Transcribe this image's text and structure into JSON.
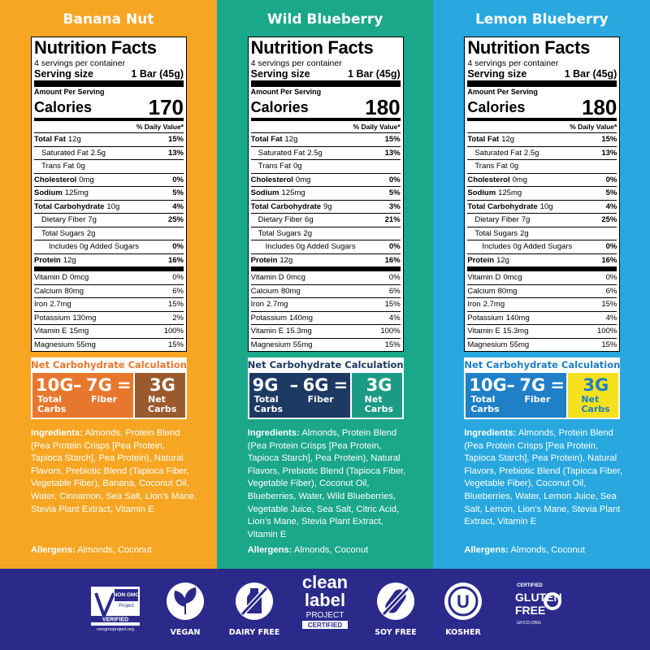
{
  "products": [
    {
      "name": "Banana Nut",
      "facts": {
        "title": "Nutrition Facts",
        "servings": "4 servings per container",
        "serving_label": "Serving size",
        "serving_value": "1 Bar (45g)",
        "amount_per": "Amount Per Serving",
        "calories_label": "Calories",
        "calories": 170,
        "dv_header": "% Daily Value*",
        "rows": [
          {
            "name": "Total Fat",
            "amount": "12g",
            "dv": "15%"
          },
          {
            "name": "Saturated Fat",
            "amount": "2.5g",
            "dv": "13%"
          },
          {
            "name": "Trans Fat",
            "amount": "0g"
          },
          {
            "name": "Cholesterol",
            "amount": "0mg",
            "dv": "0%"
          },
          {
            "name": "Sodium",
            "amount": "125mg",
            "dv": "5%"
          },
          {
            "name": "Total Carbohydrate",
            "amount": "10g",
            "dv": "4%"
          },
          {
            "name": "Dietary Fiber",
            "amount": "7g",
            "dv": "25%"
          },
          {
            "name": "Total Sugars",
            "amount": "2g"
          },
          {
            "name": "Includes 0g Added Sugars",
            "dv": "0%"
          },
          {
            "name": "Protein",
            "amount": "12g",
            "dv": "16%"
          },
          {
            "name": "Vitamin D",
            "amount": "0mcg",
            "dv": "0%"
          },
          {
            "name": "Calcium",
            "amount": "80mg",
            "dv": "6%"
          },
          {
            "name": "Iron",
            "amount": "2.7mg",
            "dv": "15%"
          },
          {
            "name": "Potassium",
            "amount": "130mg",
            "dv": "2%"
          },
          {
            "name": "Vitamin E",
            "amount": "15mg",
            "dv": "100%"
          },
          {
            "name": "Magnesium",
            "amount": "55mg",
            "dv": "15%"
          }
        ]
      },
      "net": {
        "title": "Net Carbohydrate Calculation",
        "total": "10G",
        "total_label": "Total Carbs",
        "minus": "–",
        "fiber": "7G",
        "fiber_label": "Fiber",
        "equals": "=",
        "result": "3G",
        "result_label": "Net Carbs"
      },
      "ingredients_label": "Ingredients:",
      "ingredients": "Almonds, Protein Blend (Pea Protein Crisps [Pea Protein, Tapioca Starch], Pea Protein), Natural Flavors, Prebiotic Blend (Tapioca Fiber, Vegetable Fiber), Banana, Coconut Oil, Water, Cinnamon, Sea Salt, Lion’s Mane, Stevia Plant Extract, Vitamin E",
      "allergens_label": "Allergens:",
      "allergens": "Almonds, Coconut"
    },
    {
      "name": "Wild Blueberry",
      "facts": {
        "title": "Nutrition Facts",
        "servings": "4 servings per container",
        "serving_label": "Serving size",
        "serving_value": "1 Bar (45g)",
        "amount_per": "Amount Per Serving",
        "calories_label": "Calories",
        "calories": 180,
        "dv_header": "% Daily Value*",
        "rows": [
          {
            "name": "Total Fat",
            "amount": "12g",
            "dv": "15%"
          },
          {
            "name": "Saturated Fat",
            "amount": "2.5g",
            "dv": "13%"
          },
          {
            "name": "Trans Fat",
            "amount": "0g"
          },
          {
            "name": "Cholesterol",
            "amount": "0mg",
            "dv": "0%"
          },
          {
            "name": "Sodium",
            "amount": "125mg",
            "dv": "5%"
          },
          {
            "name": "Total Carbohydrate",
            "amount": "9g",
            "dv": "3%"
          },
          {
            "name": "Dietary Fiber",
            "amount": "6g",
            "dv": "21%"
          },
          {
            "name": "Total Sugars",
            "amount": "2g"
          },
          {
            "name": "Includes 0g Added Sugars",
            "dv": "0%"
          },
          {
            "name": "Protein",
            "amount": "12g",
            "dv": "16%"
          },
          {
            "name": "Vitamin D",
            "amount": "0mcg",
            "dv": "0%"
          },
          {
            "name": "Calcium",
            "amount": "80mg",
            "dv": "6%"
          },
          {
            "name": "Iron",
            "amount": "2.7mg",
            "dv": "15%"
          },
          {
            "name": "Potassium",
            "amount": "140mg",
            "dv": "4%"
          },
          {
            "name": "Vitamin E",
            "amount": "15.3mg",
            "dv": "100%"
          },
          {
            "name": "Magnesium",
            "amount": "55mg",
            "dv": "15%"
          }
        ]
      },
      "net": {
        "title": "Net Carbohydrate Calculation",
        "total": "9G",
        "total_label": "Total Carbs",
        "minus": "–",
        "fiber": "6G",
        "fiber_label": "Fiber",
        "equals": "=",
        "result": "3G",
        "result_label": "Net Carbs"
      },
      "ingredients_label": "Ingredients:",
      "ingredients": "Almonds, Protein Blend (Pea Protein Crisps [Pea Protein, Tapioca Starch], Pea Protein), Natural Flavors, Prebiotic Blend (Tapioca Fiber, Vegetable Fiber), Coconut Oil, Blueberries, Water, Wild Blueberries, Vegetable Juice, Sea Salt, Citric Acid, Lion’s Mane, Stevia Plant Extract, Vitamin E",
      "allergens_label": "Allergens:",
      "allergens": "Almonds, Coconut"
    },
    {
      "name": "Lemon Blueberry",
      "facts": {
        "title": "Nutrition Facts",
        "servings": "4 servings per container",
        "serving_label": "Serving size",
        "serving_value": "1 Bar (45g)",
        "amount_per": "Amount Per Serving",
        "calories_label": "Calories",
        "calories": 180,
        "dv_header": "% Daily Value*",
        "rows": [
          {
            "name": "Total Fat",
            "amount": "12g",
            "dv": "15%"
          },
          {
            "name": "Saturated Fat",
            "amount": "2.5g",
            "dv": "13%"
          },
          {
            "name": "Trans Fat",
            "amount": "0g"
          },
          {
            "name": "Cholesterol",
            "amount": "0mg",
            "dv": "0%"
          },
          {
            "name": "Sodium",
            "amount": "125mg",
            "dv": "5%"
          },
          {
            "name": "Total Carbohydrate",
            "amount": "10g",
            "dv": "4%"
          },
          {
            "name": "Dietary Fiber",
            "amount": "7g",
            "dv": "25%"
          },
          {
            "name": "Total Sugars",
            "amount": "2g"
          },
          {
            "name": "Includes 0g Added Sugars",
            "dv": "0%"
          },
          {
            "name": "Protein",
            "amount": "12g",
            "dv": "16%"
          },
          {
            "name": "Vitamin D",
            "amount": "0mcg",
            "dv": "0%"
          },
          {
            "name": "Calcium",
            "amount": "80mg",
            "dv": "6%"
          },
          {
            "name": "Iron",
            "amount": "2.7mg",
            "dv": "15%"
          },
          {
            "name": "Potassium",
            "amount": "140mg",
            "dv": "4%"
          },
          {
            "name": "Vitamin E",
            "amount": "15.3mg",
            "dv": "100%"
          },
          {
            "name": "Magnesium",
            "amount": "55mg",
            "dv": "15%"
          }
        ]
      },
      "net": {
        "title": "Net Carbohydrate Calculation",
        "total": "10G",
        "total_label": "Total Carbs",
        "minus": "–",
        "fiber": "7G",
        "fiber_label": "Fiber",
        "equals": "=",
        "result": "3G",
        "result_label": "Net Carbs"
      },
      "ingredients_label": "Ingredients:",
      "ingredients": "Almonds, Protein Blend (Pea Protein Crisps [Pea Protein, Tapioca Starch], Pea Protein), Natural Flavors, Prebiotic Blend (Tapioca Fiber, Vegetable Fiber), Coconut Oil, Blueberries, Water, Lemon Juice, Sea Salt, Lemon, Lion’s Mane, Stevia Plant Extract, Vitamin E",
      "allergens_label": "Allergens:",
      "allergens": "Almonds, Coconut"
    }
  ],
  "badges": {
    "non_gmo": {
      "top": "NON GMO",
      "project": "Project",
      "verified": "VERIFIED",
      "url": "nongmoproject.org"
    },
    "vegan": "VEGAN",
    "dairy_free": "DAIRY FREE",
    "clean_label": {
      "line1": "clean",
      "line2": "label",
      "project": "PROJECT",
      "certified": "CERTIFIED"
    },
    "soy_free": "SOY FREE",
    "kosher": {
      "mark": "U",
      "label": "KOSHER"
    },
    "gluten_free": {
      "certified": "CERTIFIED",
      "line1": "GLUTEN",
      "line2": "FREE",
      "url": "GFCO.ORG"
    }
  }
}
